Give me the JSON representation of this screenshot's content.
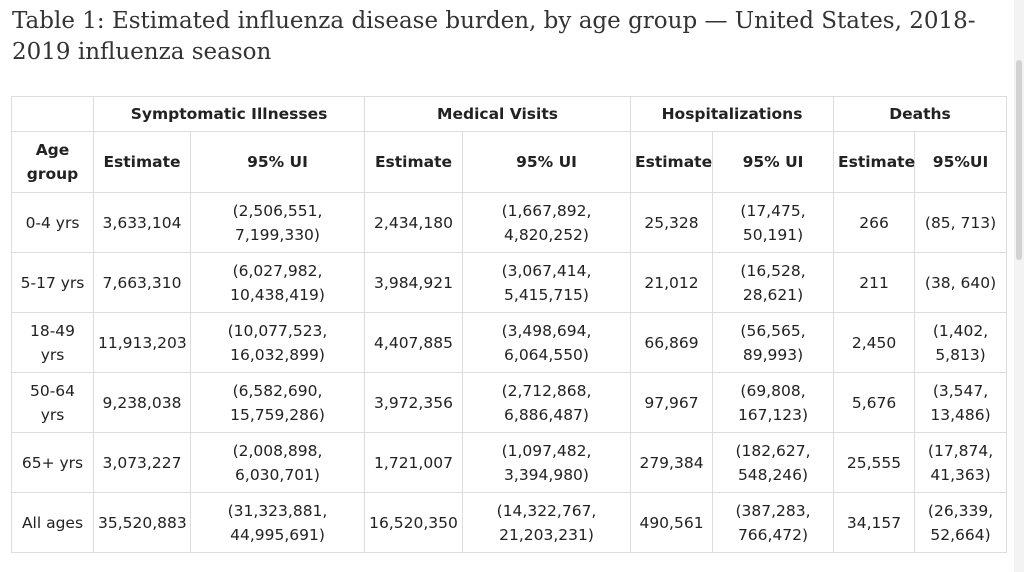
{
  "title": "Table 1: Estimated influenza disease burden, by age group — United States, 2018-2019 influenza season",
  "table": {
    "groups": [
      "Symptomatic Illnesses",
      "Medical Visits",
      "Hospitalizations",
      "Deaths"
    ],
    "age_header": "Age group",
    "sub_headers": [
      "Estimate",
      "95% UI",
      "Estimate",
      "95% UI",
      "Estimate",
      "95% UI",
      "Estimate",
      "95%UI"
    ],
    "rows": [
      [
        "0-4 yrs",
        "3,633,104",
        "(2,506,551, 7,199,330)",
        "2,434,180",
        "(1,667,892, 4,820,252)",
        "25,328",
        "(17,475, 50,191)",
        "266",
        "(85, 713)"
      ],
      [
        "5-17 yrs",
        "7,663,310",
        "(6,027,982, 10,438,419)",
        "3,984,921",
        "(3,067,414, 5,415,715)",
        "21,012",
        "(16,528, 28,621)",
        "211",
        "(38, 640)"
      ],
      [
        "18-49 yrs",
        "11,913,203",
        "(10,077,523, 16,032,899)",
        "4,407,885",
        "(3,498,694, 6,064,550)",
        "66,869",
        "(56,565, 89,993)",
        "2,450",
        "(1,402, 5,813)"
      ],
      [
        "50-64 yrs",
        "9,238,038",
        "(6,582,690, 15,759,286)",
        "3,972,356",
        "(2,712,868, 6,886,487)",
        "97,967",
        "(69,808, 167,123)",
        "5,676",
        "(3,547, 13,486)"
      ],
      [
        "65+ yrs",
        "3,073,227",
        "(2,008,898, 6,030,701)",
        "1,721,007",
        "(1,097,482, 3,394,980)",
        "279,384",
        "(182,627, 548,246)",
        "25,555",
        "(17,874, 41,363)"
      ],
      [
        "All ages",
        "35,520,883",
        "(31,323,881, 44,995,691)",
        "16,520,350",
        "(14,322,767, 21,203,231)",
        "490,561",
        "(387,283, 766,472)",
        "34,157",
        "(26,339, 52,664)"
      ]
    ]
  }
}
